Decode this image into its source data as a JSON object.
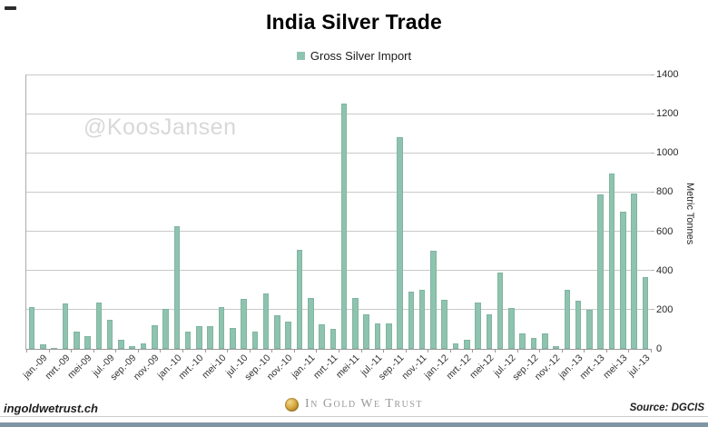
{
  "title": "India Silver Trade",
  "legend": {
    "label": "Gross Silver Import",
    "marker_color": "#8EC3AF"
  },
  "watermark": "@KoosJansen",
  "y_axis": {
    "title": "Metric Tonnes",
    "ticks": [
      0,
      200,
      400,
      600,
      800,
      1000,
      1200,
      1400
    ],
    "max": 1400
  },
  "footer": {
    "site": "ingoldwetrust.ch",
    "brand": "In Gold We Trust",
    "source": "Source: DGCIS"
  },
  "chart_data": {
    "type": "bar",
    "title": "India Silver Trade",
    "series_name": "Gross Silver Import",
    "xlabel": "",
    "ylabel": "Metric Tonnes",
    "ylim": [
      0,
      1400
    ],
    "grid": true,
    "legend_position": "top",
    "bar_color": "#8EC3AF",
    "categories": [
      "jan-09",
      "feb-09",
      "mrt-09",
      "apr-09",
      "mei-09",
      "jun-09",
      "jul-09",
      "aug-09",
      "sep-09",
      "okt-09",
      "nov-09",
      "dec-09",
      "jan-10",
      "feb-10",
      "mrt-10",
      "apr-10",
      "mei-10",
      "jun-10",
      "jul-10",
      "aug-10",
      "sep-10",
      "okt-10",
      "nov-10",
      "dec-10",
      "jan-11",
      "feb-11",
      "mrt-11",
      "apr-11",
      "mei-11",
      "jun-11",
      "jul-11",
      "aug-11",
      "sep-11",
      "okt-11",
      "nov-11",
      "dec-11",
      "jan-12",
      "feb-12",
      "mrt-12",
      "apr-12",
      "mei-12",
      "jun-12",
      "jul-12",
      "aug-12",
      "sep-12",
      "okt-12",
      "nov-12",
      "dec-12",
      "jan-13",
      "feb-13",
      "mrt-13",
      "apr-13",
      "mei-13",
      "jun-13",
      "jul-13",
      "aug-13"
    ],
    "values": [
      215,
      25,
      5,
      230,
      90,
      65,
      235,
      150,
      45,
      15,
      30,
      120,
      205,
      625,
      90,
      115,
      115,
      215,
      105,
      255,
      90,
      285,
      170,
      140,
      505,
      260,
      125,
      100,
      1250,
      260,
      175,
      130,
      130,
      1080,
      290,
      300,
      500,
      250,
      30,
      45,
      235,
      175,
      390,
      210,
      80,
      55,
      80,
      15,
      300,
      245,
      200,
      790,
      895,
      700,
      795,
      365
    ],
    "x_tick_labels": [
      "jan.-09",
      "mrt.-09",
      "mei-09",
      "jul.-09",
      "sep.-09",
      "nov.-09",
      "jan.-10",
      "mrt.-10",
      "mei-10",
      "jul.-10",
      "sep.-10",
      "nov.-10",
      "jan.-11",
      "mrt.-11",
      "mei-11",
      "jul.-11",
      "sep.-11",
      "nov.-11",
      "jan.-12",
      "mrt.-12",
      "mei-12",
      "jul.-12",
      "sep.-12",
      "nov.-12",
      "jan.-13",
      "mrt.-13",
      "mei-13",
      "jul.-13"
    ]
  }
}
